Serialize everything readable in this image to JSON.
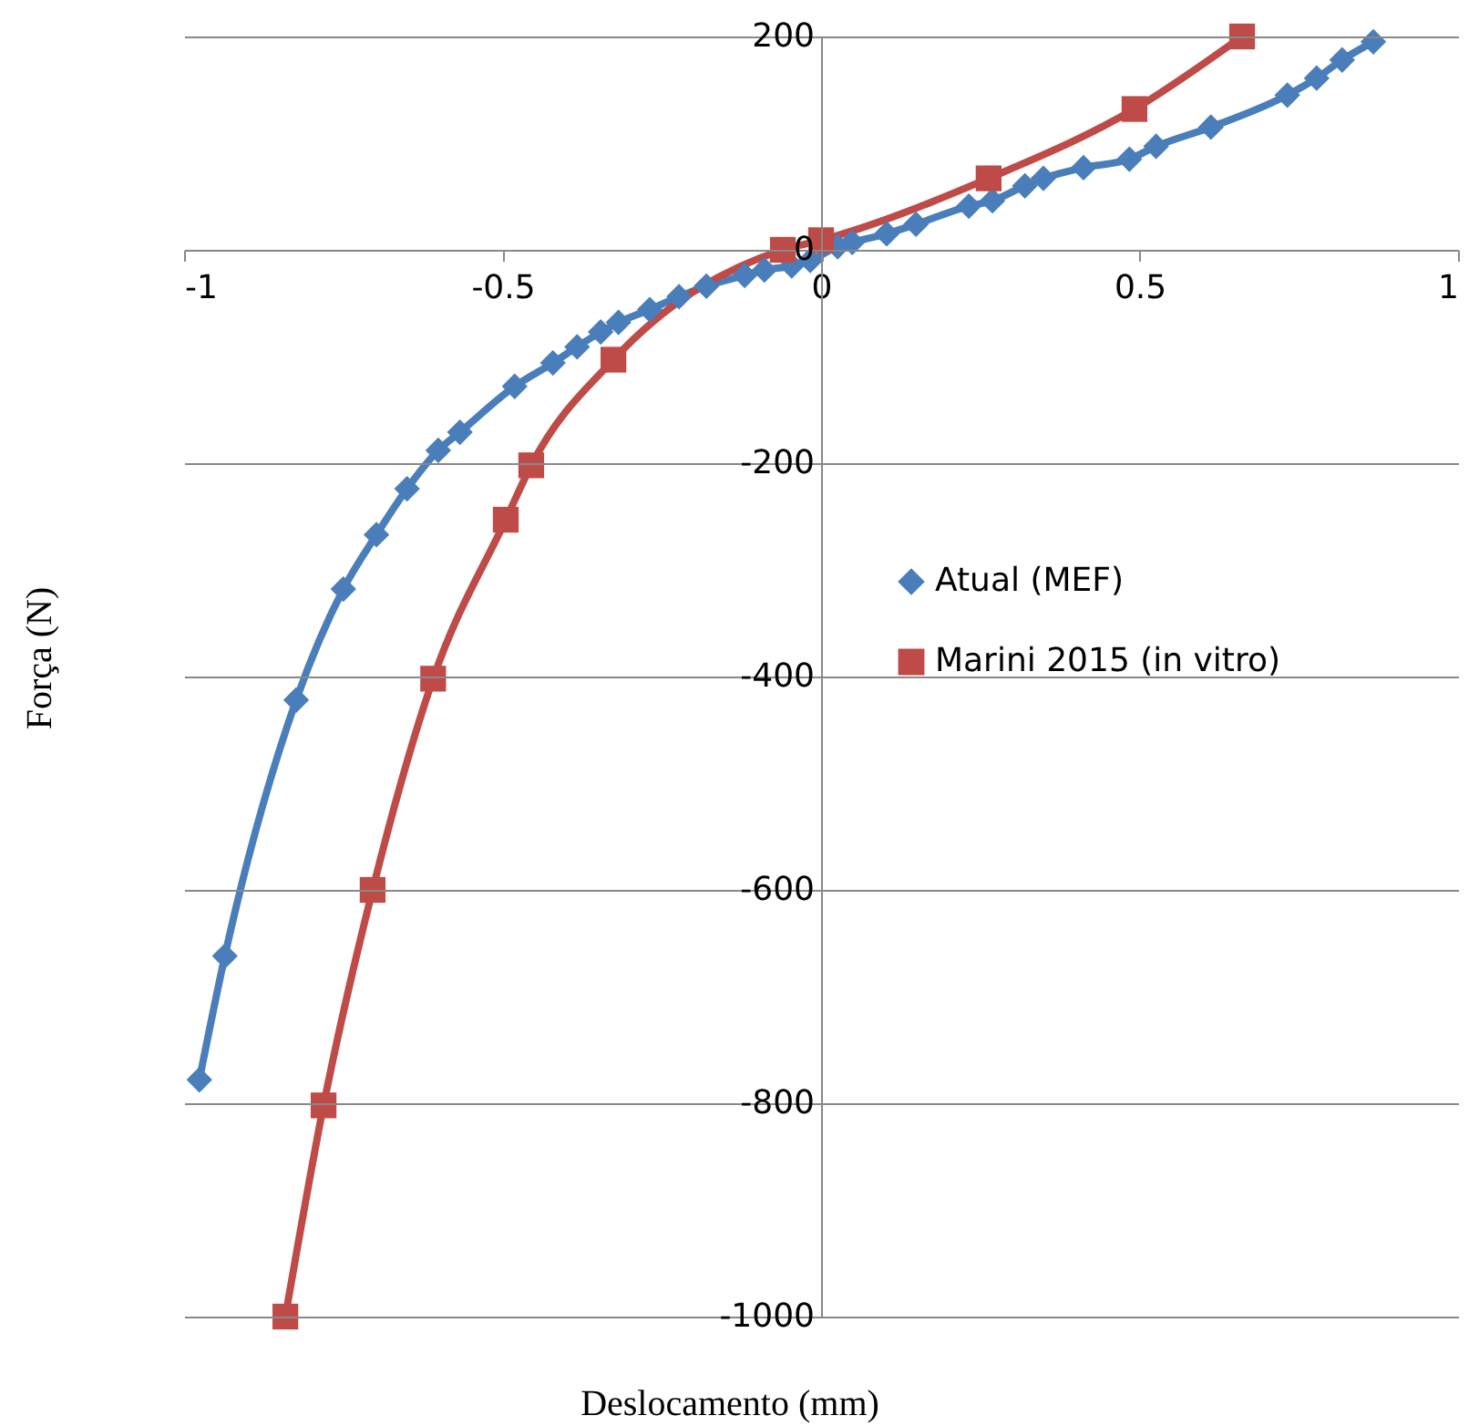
{
  "chart_data": {
    "type": "line",
    "xlabel": "Deslocamento (mm)",
    "ylabel": "Força (N)",
    "xlim": [
      -1,
      1
    ],
    "xticks": [
      -1,
      -0.5,
      0,
      0.5,
      1
    ],
    "ylim": [
      -1000,
      200
    ],
    "yticks": [
      -1000,
      -800,
      -600,
      -400,
      -200,
      0,
      200
    ],
    "grid": "y",
    "legend": "right",
    "line_style": "solid",
    "series": [
      {
        "name": "Atual (MEF)",
        "color": "#4a7ebb",
        "marker": "diamond",
        "x": [
          -0.976,
          -0.936,
          -0.824,
          -0.75,
          -0.698,
          -0.65,
          -0.601,
          -0.567,
          -0.481,
          -0.421,
          -0.383,
          -0.346,
          -0.318,
          -0.269,
          -0.223,
          -0.18,
          -0.12,
          -0.089,
          -0.046,
          -0.017,
          0.026,
          0.049,
          0.103,
          0.149,
          0.232,
          0.269,
          0.32,
          0.349,
          0.412,
          0.484,
          0.526,
          0.612,
          0.732,
          0.778,
          0.818,
          0.867
        ],
        "values": [
          -778,
          -662,
          -422,
          -318,
          -267,
          -224,
          -188,
          -171,
          -128,
          -106,
          -91,
          -77,
          -68,
          -56,
          -44,
          -34,
          -24,
          -19,
          -15,
          -10,
          3,
          7,
          15,
          24,
          41,
          46,
          60,
          67,
          77,
          85,
          97,
          115,
          145,
          161,
          178,
          195
        ]
      },
      {
        "name": "Marini 2015 (in vitro)",
        "color": "#be4b48",
        "marker": "square",
        "x": [
          -0.841,
          -0.781,
          -0.704,
          -0.609,
          -0.495,
          -0.455,
          -0.326,
          -0.06,
          0.0,
          0.263,
          0.492,
          0.661
        ],
        "values": [
          -1000,
          -802,
          -600,
          -402,
          -253,
          -202,
          -103,
          0,
          9,
          67,
          132,
          200
        ]
      }
    ]
  }
}
